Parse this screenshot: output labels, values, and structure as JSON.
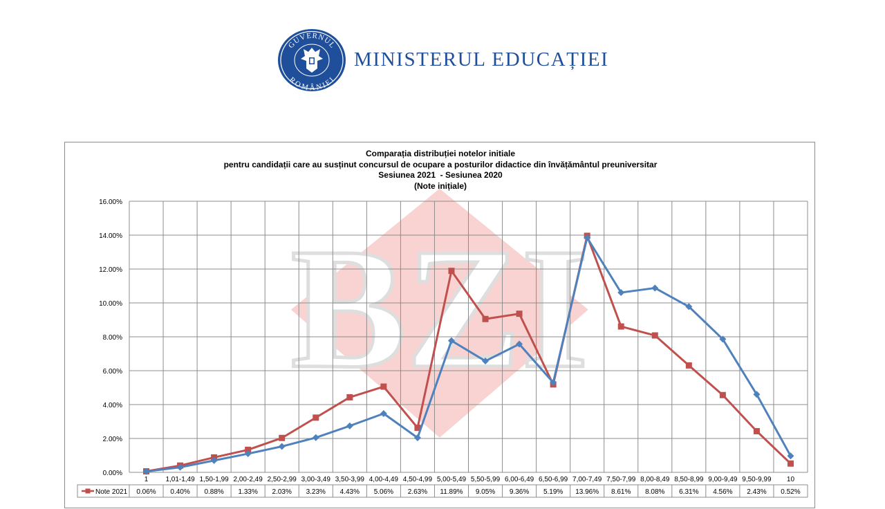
{
  "header": {
    "seal_text_top": "GUVERNUL",
    "seal_text_bottom": "ROMÂNIEI",
    "ministry_name": "MINISTERUL EDUCAȚIEI"
  },
  "watermark": {
    "text": "BZI"
  },
  "colors": {
    "series_2021": "#c0504d",
    "series_2020": "#4f81bd",
    "seal_blue": "#1f4e9a",
    "watermark": "#f2a09a"
  },
  "chart_data": {
    "type": "line",
    "title_lines": [
      "Comparația distribuției notelor initiale",
      "pentru candidații care au susținut concursul de ocupare a posturilor didactice din învățământul preuniversitar",
      "Sesiunea 2021  - Sesiunea 2020",
      "(Note inițiale)"
    ],
    "categories": [
      "1",
      "1,01-1,49",
      "1,50-1,99",
      "2,00-2,49",
      "2,50-2,99",
      "3,00-3,49",
      "3,50-3,99",
      "4,00-4,49",
      "4,50-4,99",
      "5,00-5,49",
      "5,50-5,99",
      "6,00-6,49",
      "6,50-6,99",
      "7,00-7,49",
      "7,50-7,99",
      "8,00-8,49",
      "8,50-8,99",
      "9,00-9,49",
      "9,50-9,99",
      "10"
    ],
    "y_ticks": [
      "0.00%",
      "2.00%",
      "4.00%",
      "6.00%",
      "8.00%",
      "10.00%",
      "12.00%",
      "14.00%",
      "16.00%"
    ],
    "ylim": [
      0,
      16
    ],
    "grid": true,
    "legend_placement": "data-table",
    "series": [
      {
        "name": "Note 2021",
        "marker": "square",
        "color": "#c0504d",
        "values": [
          0.06,
          0.4,
          0.88,
          1.33,
          2.03,
          3.23,
          4.43,
          5.06,
          2.63,
          11.89,
          9.05,
          9.36,
          5.19,
          13.96,
          8.61,
          8.08,
          6.31,
          4.56,
          2.43,
          0.52
        ],
        "labels": [
          "0.06%",
          "0.40%",
          "0.88%",
          "1.33%",
          "2.03%",
          "3.23%",
          "4.43%",
          "5.06%",
          "2.63%",
          "11.89%",
          "9.05%",
          "9.36%",
          "5.19%",
          "13.96%",
          "8.61%",
          "8.08%",
          "6.31%",
          "4.56%",
          "2.43%",
          "0.52%"
        ]
      },
      {
        "name": "",
        "marker": "diamond",
        "color": "#4f81bd",
        "values": [
          0.05,
          0.3,
          0.7,
          1.1,
          1.53,
          2.05,
          2.74,
          3.47,
          2.04,
          7.77,
          6.57,
          7.57,
          5.3,
          13.85,
          10.61,
          10.88,
          9.78,
          7.86,
          4.6,
          0.97
        ]
      }
    ]
  }
}
